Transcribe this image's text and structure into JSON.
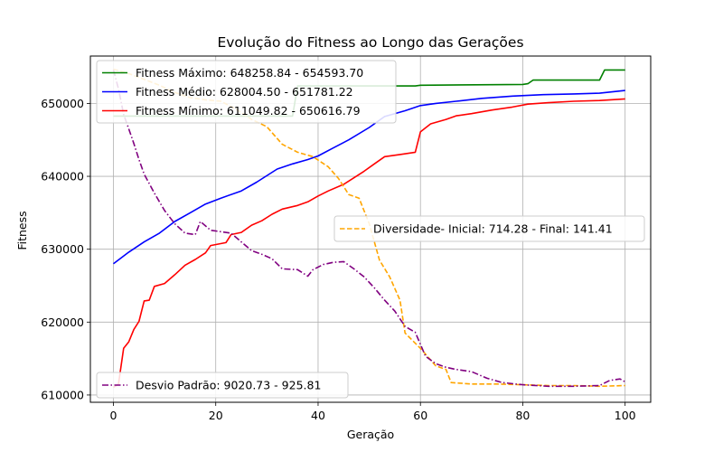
{
  "chart_data": {
    "type": "line",
    "title": "Evolução do Fitness ao Longo das Gerações",
    "xlabel": "Geração",
    "ylabel": "Fitness",
    "xlim": [
      -4.5,
      105
    ],
    "ylim": [
      609000,
      656500
    ],
    "x_ticks": [
      0,
      20,
      40,
      60,
      80,
      100
    ],
    "y_ticks": [
      610000,
      620000,
      630000,
      640000,
      650000
    ],
    "x_tick_labels": [
      "0",
      "20",
      "40",
      "60",
      "80",
      "100"
    ],
    "y_tick_labels": [
      "610000",
      "620000",
      "630000",
      "640000",
      "650000"
    ],
    "grid": true,
    "x": [
      0,
      10,
      20,
      30,
      40,
      50,
      60,
      70,
      80,
      90,
      100
    ],
    "series": [
      {
        "name": "Fitness Máximo: 648258.84 - 654593.70",
        "color": "#008000",
        "style": "solid",
        "legend": "upper-left",
        "points": [
          [
            0,
            648259
          ],
          [
            35,
            648259
          ],
          [
            36,
            652400
          ],
          [
            59,
            652400
          ],
          [
            60,
            652500
          ],
          [
            80,
            652600
          ],
          [
            81,
            652700
          ],
          [
            82,
            653200
          ],
          [
            95,
            653200
          ],
          [
            96,
            654594
          ],
          [
            100,
            654594
          ]
        ]
      },
      {
        "name": "Fitness Médio: 628004.50 - 651781.22",
        "color": "#0000ff",
        "style": "solid",
        "legend": "upper-left",
        "points": [
          [
            0,
            628004
          ],
          [
            3,
            629600
          ],
          [
            6,
            631000
          ],
          [
            9,
            632200
          ],
          [
            12,
            633800
          ],
          [
            15,
            635000
          ],
          [
            18,
            636200
          ],
          [
            21,
            637000
          ],
          [
            25,
            638000
          ],
          [
            28,
            639200
          ],
          [
            32,
            641000
          ],
          [
            35,
            641700
          ],
          [
            38,
            642300
          ],
          [
            40,
            642800
          ],
          [
            43,
            643900
          ],
          [
            46,
            645000
          ],
          [
            50,
            646700
          ],
          [
            53,
            648200
          ],
          [
            57,
            649000
          ],
          [
            60,
            649700
          ],
          [
            63,
            650000
          ],
          [
            67,
            650300
          ],
          [
            72,
            650700
          ],
          [
            78,
            651000
          ],
          [
            84,
            651200
          ],
          [
            90,
            651300
          ],
          [
            95,
            651400
          ],
          [
            100,
            651781
          ]
        ]
      },
      {
        "name": "Fitness Mínimo: 611049.82 - 650616.79",
        "color": "#ff0000",
        "style": "solid",
        "legend": "upper-left",
        "points": [
          [
            0,
            611050
          ],
          [
            1,
            611500
          ],
          [
            2,
            616400
          ],
          [
            3,
            617300
          ],
          [
            4,
            619000
          ],
          [
            5,
            620100
          ],
          [
            6,
            622900
          ],
          [
            7,
            623000
          ],
          [
            8,
            624900
          ],
          [
            10,
            625300
          ],
          [
            12,
            626500
          ],
          [
            14,
            627800
          ],
          [
            16,
            628600
          ],
          [
            18,
            629500
          ],
          [
            19,
            630500
          ],
          [
            22,
            630900
          ],
          [
            23,
            632000
          ],
          [
            25,
            632300
          ],
          [
            27,
            633300
          ],
          [
            29,
            633900
          ],
          [
            31,
            634800
          ],
          [
            33,
            635500
          ],
          [
            36,
            636000
          ],
          [
            38,
            636500
          ],
          [
            40,
            637300
          ],
          [
            42,
            638000
          ],
          [
            45,
            638900
          ],
          [
            47,
            639800
          ],
          [
            49,
            640700
          ],
          [
            51,
            641700
          ],
          [
            53,
            642700
          ],
          [
            56,
            643000
          ],
          [
            59,
            643300
          ],
          [
            60,
            646100
          ],
          [
            62,
            647200
          ],
          [
            65,
            647800
          ],
          [
            67,
            648300
          ],
          [
            70,
            648600
          ],
          [
            74,
            649100
          ],
          [
            78,
            649500
          ],
          [
            81,
            649900
          ],
          [
            85,
            650100
          ],
          [
            90,
            650300
          ],
          [
            95,
            650400
          ],
          [
            100,
            650617
          ]
        ]
      },
      {
        "name": "Diversidade- Inicial: 714.28 - Final: 141.41",
        "color": "#ffa500",
        "style": "dashed",
        "legend": "center-right",
        "points": [
          [
            0,
            654700
          ],
          [
            3,
            654100
          ],
          [
            6,
            653300
          ],
          [
            9,
            652500
          ],
          [
            12,
            651500
          ],
          [
            15,
            650800
          ],
          [
            18,
            650500
          ],
          [
            21,
            650300
          ],
          [
            24,
            649200
          ],
          [
            27,
            647800
          ],
          [
            30,
            646800
          ],
          [
            33,
            644400
          ],
          [
            36,
            643300
          ],
          [
            39,
            642700
          ],
          [
            42,
            641300
          ],
          [
            44,
            639700
          ],
          [
            46,
            637500
          ],
          [
            48,
            637000
          ],
          [
            50,
            633500
          ],
          [
            52,
            628500
          ],
          [
            54,
            626200
          ],
          [
            56,
            623000
          ],
          [
            57,
            618500
          ],
          [
            60,
            616400
          ],
          [
            63,
            614000
          ],
          [
            65,
            613500
          ],
          [
            66,
            611700
          ],
          [
            70,
            611500
          ],
          [
            75,
            611500
          ],
          [
            80,
            611400
          ],
          [
            85,
            611300
          ],
          [
            90,
            611300
          ],
          [
            95,
            611200
          ],
          [
            100,
            611300
          ]
        ]
      },
      {
        "name": "Desvio Padrão: 9020.73 - 925.81",
        "color": "#800080",
        "style": "dashdot",
        "legend": "lower-left",
        "points": [
          [
            0,
            654600
          ],
          [
            1,
            652000
          ],
          [
            2,
            648500
          ],
          [
            3,
            646500
          ],
          [
            4,
            644500
          ],
          [
            5,
            642300
          ],
          [
            6,
            640300
          ],
          [
            8,
            637700
          ],
          [
            10,
            635300
          ],
          [
            12,
            633500
          ],
          [
            14,
            632200
          ],
          [
            16,
            632000
          ],
          [
            17,
            633800
          ],
          [
            19,
            632600
          ],
          [
            21,
            632400
          ],
          [
            23,
            632200
          ],
          [
            25,
            631000
          ],
          [
            27,
            629800
          ],
          [
            29,
            629300
          ],
          [
            31,
            628700
          ],
          [
            33,
            627300
          ],
          [
            36,
            627200
          ],
          [
            38,
            626300
          ],
          [
            39,
            627200
          ],
          [
            41,
            627900
          ],
          [
            43,
            628200
          ],
          [
            45,
            628300
          ],
          [
            47,
            627300
          ],
          [
            49,
            626200
          ],
          [
            51,
            624700
          ],
          [
            53,
            623000
          ],
          [
            55,
            621500
          ],
          [
            57,
            619400
          ],
          [
            59,
            618600
          ],
          [
            61,
            615300
          ],
          [
            63,
            614300
          ],
          [
            65,
            613800
          ],
          [
            67,
            613500
          ],
          [
            70,
            613200
          ],
          [
            73,
            612300
          ],
          [
            76,
            611700
          ],
          [
            80,
            611400
          ],
          [
            85,
            611200
          ],
          [
            90,
            611200
          ],
          [
            95,
            611300
          ],
          [
            97,
            612000
          ],
          [
            99,
            612200
          ],
          [
            100,
            611800
          ]
        ]
      }
    ],
    "legends": [
      {
        "placement": "upper-left",
        "entries": [
          0,
          1,
          2
        ]
      },
      {
        "placement": "center-right",
        "entries": [
          3
        ]
      },
      {
        "placement": "lower-left",
        "entries": [
          4
        ]
      }
    ]
  }
}
